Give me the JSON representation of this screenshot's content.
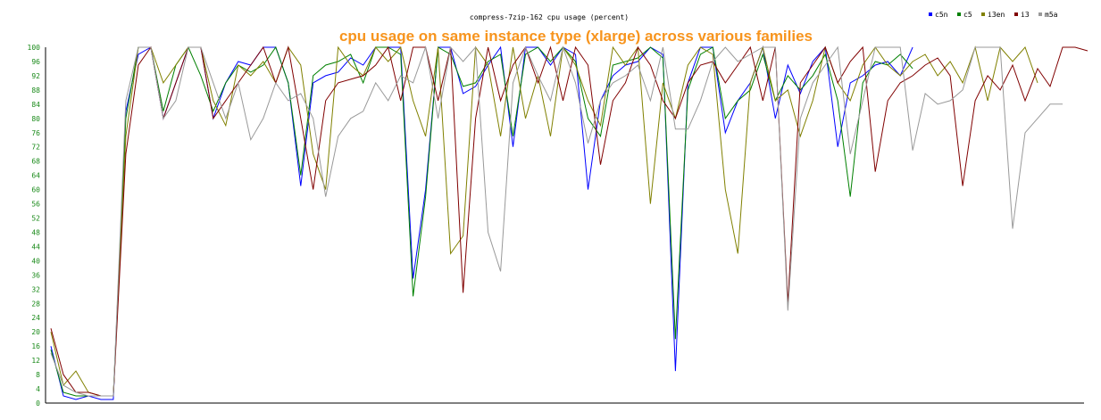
{
  "chart_data": {
    "type": "line",
    "title": "compress-7zip-162 cpu usage (percent)",
    "subtitle": "cpu usage on same instance type (xlarge) across various families",
    "xlabel": "",
    "ylabel": "",
    "ylim": [
      0,
      100
    ],
    "yticks": [
      "0",
      "4",
      "8",
      "12",
      "16",
      "20",
      "24",
      "28",
      "32",
      "36",
      "40",
      "44",
      "48",
      "52",
      "56",
      "60",
      "64",
      "68",
      "72",
      "76",
      "80",
      "84",
      "88",
      "92",
      "96",
      "100"
    ],
    "grid": false,
    "legend_position": "top-right",
    "series": [
      {
        "name": "c5n",
        "color": "#0000ff",
        "values": [
          16,
          2,
          1,
          2,
          1,
          1,
          82,
          98,
          100,
          80,
          90,
          100,
          100,
          80,
          90,
          96,
          95,
          100,
          100,
          90,
          61,
          90,
          92,
          93,
          97,
          95,
          100,
          100,
          100,
          35,
          60,
          100,
          100,
          87,
          89,
          95,
          100,
          72,
          100,
          100,
          95,
          100,
          98,
          60,
          85,
          92,
          95,
          96,
          100,
          98,
          9,
          90,
          100,
          100,
          76,
          85,
          90,
          100,
          80,
          95,
          87,
          96,
          100,
          72,
          90,
          92,
          95,
          96,
          92,
          100
        ]
      },
      {
        "name": "c5",
        "color": "#008000",
        "values": [
          15,
          3,
          2,
          2,
          2,
          2,
          80,
          100,
          100,
          82,
          95,
          100,
          92,
          82,
          90,
          95,
          93,
          95,
          100,
          90,
          64,
          92,
          95,
          96,
          98,
          90,
          100,
          100,
          98,
          30,
          58,
          100,
          98,
          89,
          90,
          96,
          98,
          75,
          98,
          100,
          96,
          100,
          96,
          80,
          75,
          95,
          96,
          97,
          100,
          97,
          18,
          88,
          98,
          100,
          80,
          85,
          88,
          98,
          85,
          92,
          88,
          92,
          98,
          85,
          58,
          90,
          96,
          95,
          98,
          94
        ]
      },
      {
        "name": "i3en",
        "color": "#808000",
        "values": [
          20,
          5,
          9,
          3,
          2,
          2,
          75,
          100,
          100,
          90,
          95,
          100,
          100,
          85,
          78,
          95,
          92,
          96,
          90,
          100,
          95,
          70,
          60,
          100,
          95,
          92,
          100,
          96,
          100,
          85,
          75,
          100,
          42,
          47,
          100,
          95,
          75,
          100,
          80,
          92,
          75,
          100,
          95,
          85,
          78,
          100,
          95,
          100,
          56,
          90,
          80,
          95,
          100,
          98,
          60,
          42,
          90,
          100,
          85,
          88,
          75,
          85,
          100,
          90,
          85,
          95,
          100,
          95,
          92,
          96,
          98,
          92,
          96,
          90,
          100,
          85,
          100,
          96,
          100,
          90
        ]
      },
      {
        "name": "i3",
        "color": "#800000",
        "values": [
          21,
          8,
          3,
          3,
          2,
          2,
          70,
          95,
          100,
          80,
          90,
          100,
          100,
          80,
          85,
          90,
          95,
          100,
          90,
          100,
          80,
          60,
          85,
          90,
          91,
          92,
          95,
          100,
          85,
          100,
          100,
          85,
          100,
          31,
          80,
          100,
          85,
          95,
          100,
          90,
          100,
          85,
          100,
          95,
          67,
          85,
          90,
          100,
          95,
          85,
          80,
          90,
          95,
          96,
          90,
          95,
          100,
          85,
          100,
          28,
          90,
          95,
          100,
          90,
          96,
          100,
          65,
          85,
          90,
          92,
          95,
          97,
          92,
          61,
          85,
          92,
          88,
          95,
          85,
          94,
          89,
          100,
          100,
          99
        ]
      },
      {
        "name": "m5a",
        "color": "#999999",
        "values": [
          14,
          5,
          3,
          2,
          2,
          2,
          85,
          100,
          100,
          80,
          85,
          100,
          100,
          90,
          80,
          90,
          74,
          80,
          90,
          85,
          87,
          80,
          58,
          75,
          80,
          82,
          90,
          85,
          92,
          90,
          100,
          80,
          100,
          96,
          100,
          48,
          37,
          90,
          100,
          92,
          85,
          100,
          90,
          73,
          85,
          90,
          92,
          95,
          85,
          100,
          77,
          77,
          85,
          96,
          100,
          96,
          98,
          100,
          100,
          26,
          80,
          90,
          95,
          100,
          70,
          85,
          100,
          100,
          100,
          71,
          87,
          84,
          85,
          88,
          100,
          100,
          100,
          49,
          76,
          80,
          84,
          84
        ]
      }
    ]
  }
}
